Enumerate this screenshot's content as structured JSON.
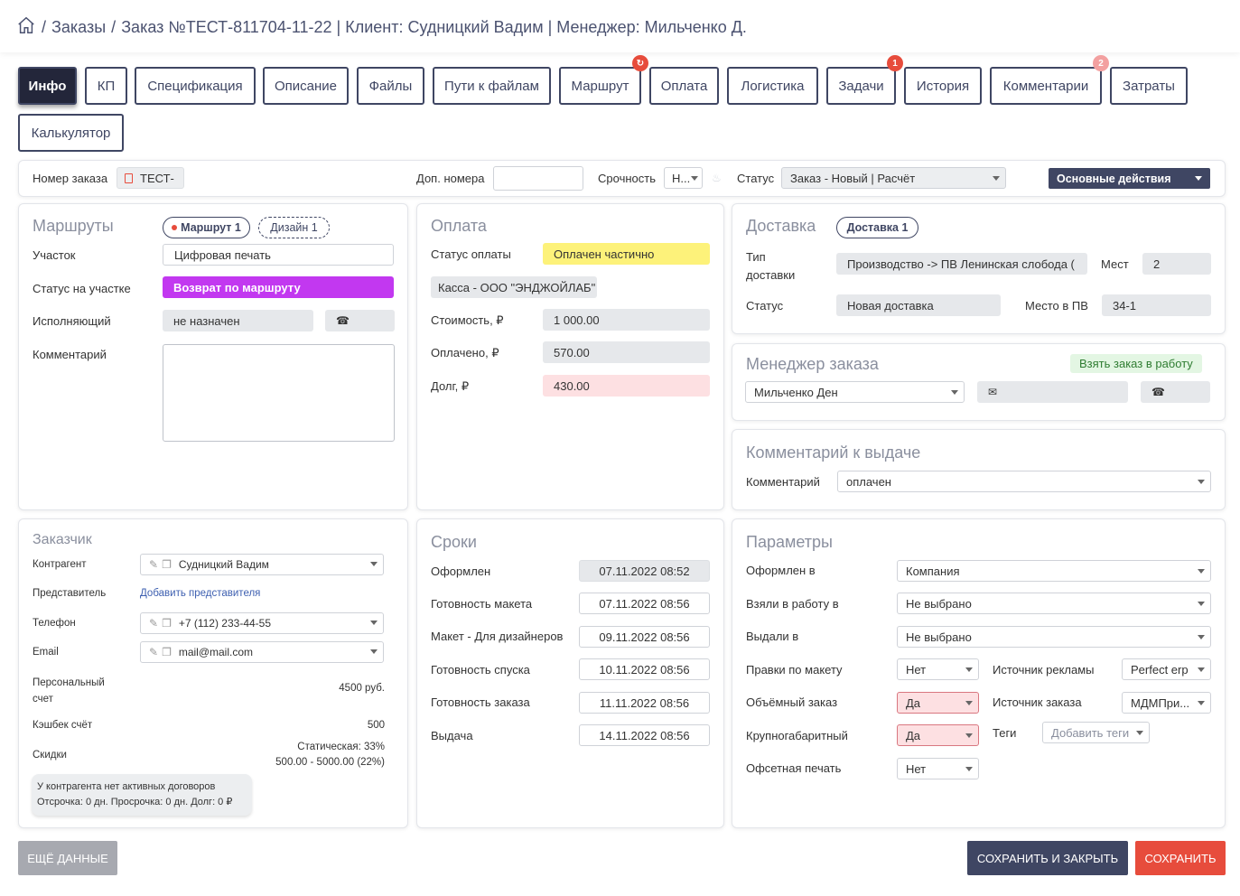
{
  "breadcrumb": {
    "home_icon": "home-icon",
    "separator": "/",
    "orders": "Заказы",
    "order": "Заказ №ТЕСТ-811704-11-22 | Клиент: Судницкий Вадим | Менеджер: Мильченко Д."
  },
  "tabs": [
    {
      "label": "Инфо",
      "active": true
    },
    {
      "label": "КП"
    },
    {
      "label": "Спецификация"
    },
    {
      "label": "Описание"
    },
    {
      "label": "Файлы"
    },
    {
      "label": "Пути к файлам"
    },
    {
      "label": "Маршрут",
      "badge_icon": "refresh-icon"
    },
    {
      "label": "Оплата"
    },
    {
      "label": "Логистика"
    },
    {
      "label": "Задачи",
      "badge": "1"
    },
    {
      "label": "История"
    },
    {
      "label": "Комментарии",
      "badge": "2"
    },
    {
      "label": "Затраты"
    },
    {
      "label": "Калькулятор"
    }
  ],
  "orderbar": {
    "number_label": "Номер заказа",
    "number_value": "ТЕСТ-",
    "extra_label": "Доп. номера",
    "extra_value": "",
    "urgency_label": "Срочность",
    "urgency_value": "Н...",
    "status_label": "Статус",
    "status_value": "Заказ - Новый | Расчёт",
    "actions_label": "Основные действия"
  },
  "routes": {
    "title": "Маршруты",
    "pill_route": "Маршрут 1",
    "pill_design": "Дизайн 1",
    "section_label": "Участок",
    "section_value": "Цифровая печать",
    "status_label": "Статус на участке",
    "status_value": "Возврат по маршруту",
    "executor_label": "Исполняющий",
    "executor_value": "не назначен",
    "comment_label": "Комментарий",
    "comment_value": ""
  },
  "payment": {
    "title": "Оплата",
    "status_label": "Статус оплаты",
    "status_value": "Оплачен частично",
    "cashbox": "Касса - ООО \"ЭНДЖОЙЛАБ\"",
    "cost_label": "Стоимость, ₽",
    "cost_value": "1 000.00",
    "paid_label": "Оплачено, ₽",
    "paid_value": "570.00",
    "debt_label": "Долг, ₽",
    "debt_value": "430.00"
  },
  "delivery": {
    "title": "Доставка",
    "pill": "Доставка 1",
    "type_label": "Тип доставки",
    "type_value": "Производство -> ПВ Ленинская слобода (",
    "places_label": "Мест",
    "places_value": "2",
    "status_label": "Статус",
    "status_value": "Новая доставка",
    "pv_label": "Место в ПВ",
    "pv_value": "34-1"
  },
  "manager": {
    "title": "Менеджер заказа",
    "take_label": "Взять заказ в работу",
    "name": "Мильченко Ден",
    "email": "",
    "phone": ""
  },
  "issue_comment": {
    "title": "Комментарий к выдаче",
    "label": "Комментарий",
    "value": "оплачен"
  },
  "customer": {
    "title": "Заказчик",
    "contractor_label": "Контрагент",
    "contractor_value": "Судницкий Вадим",
    "rep_label": "Представитель",
    "rep_link": "Добавить представителя",
    "phone_label": "Телефон",
    "phone_value": "+7 (112) 233-44-55",
    "email_label": "Email",
    "email_value": "mail@mail.com",
    "account_label": "Персональный счет",
    "account_value": "4500 руб.",
    "cashback_label": "Кэшбек счёт",
    "cashback_value": "500",
    "discount_label": "Скидки",
    "discount_line1": "Статическая: 33%",
    "discount_line2": "500.00 - 5000.00 (22%)",
    "note_line1": "У контрагента нет активных договоров",
    "note_line2": "Отсрочка: 0 дн. Просрочка: 0 дн. Долг: 0 ₽"
  },
  "deadlines": {
    "title": "Сроки",
    "rows": [
      {
        "label": "Оформлен",
        "value": "07.11.2022 08:52"
      },
      {
        "label": "Готовность макета",
        "value": "07.11.2022 08:56"
      },
      {
        "label": "Макет - Для дизайнеров",
        "value": "09.11.2022 08:56"
      },
      {
        "label": "Готовность спуска",
        "value": "10.11.2022 08:56"
      },
      {
        "label": "Готовность заказа",
        "value": "11.11.2022 08:56"
      },
      {
        "label": "Выдача",
        "value": "14.11.2022 08:56"
      }
    ]
  },
  "params": {
    "title": "Параметры",
    "registered_label": "Оформлен в",
    "registered_value": "Компания",
    "taken_label": "Взяли в работу в",
    "taken_value": "Не выбрано",
    "issued_label": "Выдали в",
    "issued_value": "Не выбрано",
    "edits_label": "Правки по макету",
    "edits_value": "Нет",
    "adsource_label": "Источник рекламы",
    "adsource_value": "Perfect erp",
    "volume_label": "Объёмный заказ",
    "volume_value": "Да",
    "ordersource_label": "Источник заказа",
    "ordersource_value": "МДМПри...",
    "large_label": "Крупногабаритный",
    "large_value": "Да",
    "tags_label": "Теги",
    "tags_value": "Добавить теги",
    "offset_label": "Офсетная печать",
    "offset_value": "Нет"
  },
  "footer": {
    "more": "ЕЩЁ ДАННЫЕ",
    "save_close": "СОХРАНИТЬ И ЗАКРЫТЬ",
    "save": "СОХРАНИТЬ"
  },
  "colors": {
    "dark": "#23263a",
    "navy": "#3f4663",
    "purple": "#c238f0",
    "yellow": "#fdf27a",
    "red": "#e74c3c",
    "pinkbox": "#fde0e2",
    "greenbadge": "#e3f6e3"
  }
}
